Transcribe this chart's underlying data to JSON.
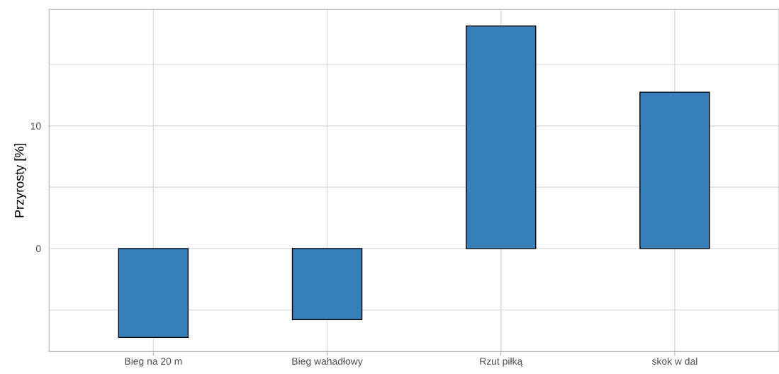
{
  "chart_data": {
    "type": "bar",
    "ylabel": "Przyrosty [%]",
    "categories": [
      "Bieg na 20 m",
      "Bieg wahadłowy",
      "Rzut piłką",
      "skok w dal"
    ],
    "values": [
      -7.25,
      -5.8,
      18.15,
      12.75
    ],
    "color": "#377eb8",
    "ylim": [
      -8.4,
      19.5
    ],
    "yticks": [
      {
        "value": -5,
        "label": null
      },
      0,
      {
        "value": 5,
        "label": null
      },
      10,
      {
        "value": 15,
        "label": null
      }
    ],
    "grid": true
  }
}
